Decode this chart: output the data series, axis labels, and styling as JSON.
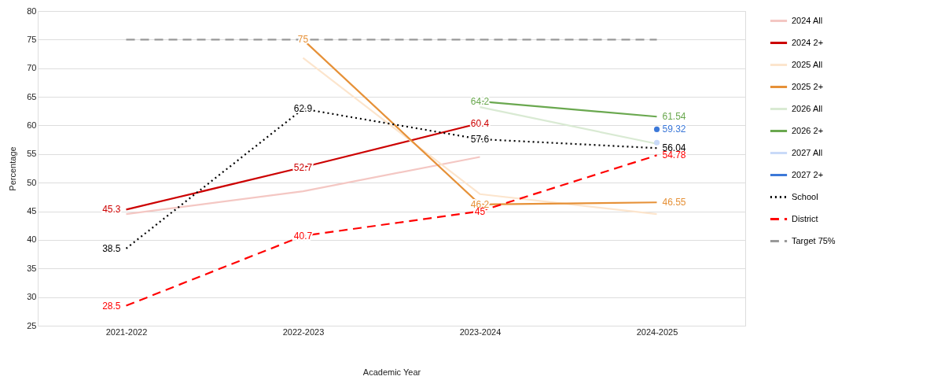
{
  "chart_data": {
    "type": "line",
    "xlabel": "Academic Year",
    "ylabel": "Percentage",
    "categories": [
      "2021-2022",
      "2022-2023",
      "2023-2024",
      "2024-2025"
    ],
    "ylim": [
      25,
      80
    ],
    "yticks": [
      25,
      30,
      35,
      40,
      45,
      50,
      55,
      60,
      65,
      70,
      75,
      80
    ],
    "grid": "y",
    "legend": "top right",
    "marker": "none",
    "series": [
      {
        "name": "2024 All",
        "color": "#f4c7c3",
        "values": [
          44.5,
          48.5,
          54.5,
          null
        ],
        "line_style": "solid"
      },
      {
        "name": "2024 2+",
        "color": "#cc0000",
        "values": [
          45.3,
          52.7,
          60.4,
          null
        ],
        "value_labels": [
          "45.3",
          "52.7",
          "60.4",
          null
        ],
        "line_style": "solid"
      },
      {
        "name": "2025 All",
        "color": "#fce5cd",
        "values": [
          null,
          71.8,
          48,
          44.5
        ],
        "line_style": "solid"
      },
      {
        "name": "2025 2+",
        "color": "#e69138",
        "values": [
          null,
          75,
          46.2,
          46.55
        ],
        "value_labels": [
          null,
          "75",
          "46.2",
          "46.55"
        ],
        "line_style": "solid"
      },
      {
        "name": "2026 All",
        "color": "#d9ead3",
        "values": [
          null,
          null,
          63.2,
          56.8
        ],
        "line_style": "solid"
      },
      {
        "name": "2026 2+",
        "color": "#6aa84f",
        "values": [
          null,
          null,
          64.2,
          61.54
        ],
        "value_labels": [
          null,
          null,
          "64.2",
          "61.54"
        ],
        "line_style": "solid"
      },
      {
        "name": "2027 All",
        "color": "#c9daf8",
        "values": [
          null,
          null,
          null,
          57
        ],
        "line_style": "solid"
      },
      {
        "name": "2027 2+",
        "color": "#3c78d8",
        "values": [
          null,
          null,
          null,
          59.32
        ],
        "value_labels": [
          null,
          null,
          null,
          "59.32"
        ],
        "line_style": "solid"
      },
      {
        "name": "School",
        "color": "#000000",
        "values": [
          38.5,
          62.9,
          57.6,
          56.04
        ],
        "value_labels": [
          "38.5",
          "62.9",
          "57.6",
          "56.04"
        ],
        "line_style": "dotted"
      },
      {
        "name": "District",
        "color": "#ff0000",
        "values": [
          28.5,
          40.7,
          45,
          54.78
        ],
        "value_labels": [
          "28.5",
          "40.7",
          "45",
          "54.78"
        ],
        "line_style": "dashed"
      },
      {
        "name": "Target 75%",
        "color": "#999999",
        "values": [
          75,
          75,
          75,
          75
        ],
        "line_style": "dashed"
      }
    ]
  }
}
